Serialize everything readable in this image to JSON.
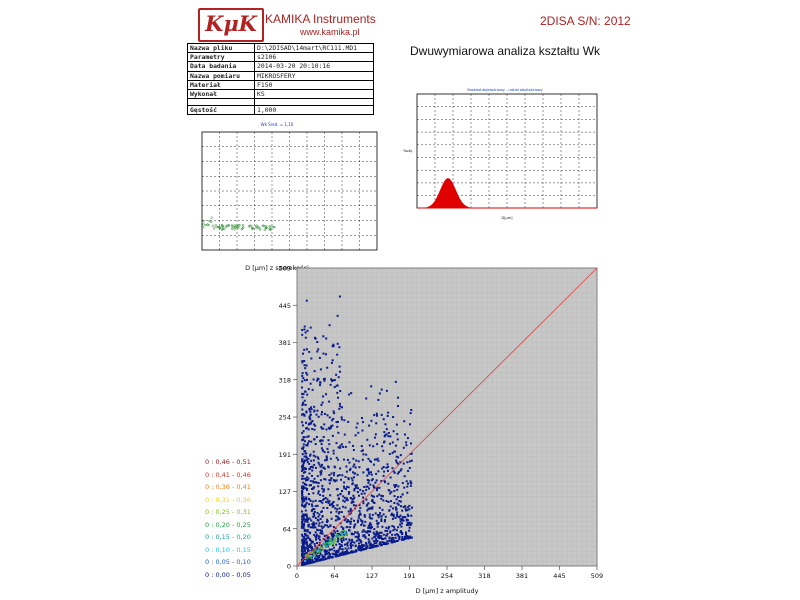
{
  "header": {
    "logo_text": "KμK",
    "company": "KAMIKA Instruments",
    "website": "www.kamika.pl",
    "serial": "2DISA S/N: 2012"
  },
  "meta_table": [
    {
      "key": "Nazwa pliku",
      "value": "D:\\2DISAD\\14mart\\RC111.MD1"
    },
    {
      "key": "Parametry",
      "value": "s2106"
    },
    {
      "key": "Data badania",
      "value": "2014-03-20 20:10:16"
    },
    {
      "key": "Nazwa pomiaru",
      "value": "MIKROSFERY"
    },
    {
      "key": "Materiał",
      "value": "F150"
    },
    {
      "key": "Wykonał",
      "value": "KS"
    },
    {
      "key": "",
      "value": ""
    },
    {
      "key": "Gęstość",
      "value": "1,000"
    }
  ],
  "analysis_title": "Dwuwymiarowa analiza kształtu Wk",
  "small_left_chart": {
    "title": "Wk Śred. = 1,10",
    "xlabel": "D [μm] z szerokości",
    "colors": {
      "points": "#2e8b2e",
      "line": "#2e8b2e"
    }
  },
  "small_right_chart": {
    "title": "Rozkład objętościowy - udział objętościowy",
    "ylabel": "%obj.",
    "xlabel": "D[μm]",
    "colors": {
      "fill": "#e00000",
      "line": "#e00000"
    }
  },
  "main_chart": {
    "xlabel": "D [μm] z amplitudy",
    "ylabel": "D [μm] z szerokości",
    "x_ticks": [
      "0",
      "64",
      "127",
      "191",
      "254",
      "318",
      "381",
      "445",
      "509"
    ],
    "y_ticks": [
      "0",
      "64",
      "127",
      "191",
      "254",
      "318",
      "381",
      "445",
      "509"
    ],
    "colors": {
      "background": "#c8c8c8",
      "grid": "#b4b4b4",
      "points": "#0a1c8c",
      "diagonal": "#e04040"
    }
  },
  "legend": [
    {
      "label": "0 : 0,46 - 0,51",
      "color": "#8b1a1a"
    },
    {
      "label": "0 : 0,41 - 0,46",
      "color": "#d43020"
    },
    {
      "label": "0 : 0,36 - 0,41",
      "color": "#f08020"
    },
    {
      "label": "0 : 0,31 - 0,36",
      "color": "#f0d020"
    },
    {
      "label": "0 : 0,25 - 0,31",
      "color": "#80c020"
    },
    {
      "label": "0 : 0,20 - 0,25",
      "color": "#20a040"
    },
    {
      "label": "0 : 0,15 - 0,20",
      "color": "#20a0a0"
    },
    {
      "label": "0 : 0,10 - 0,15",
      "color": "#20c0f0"
    },
    {
      "label": "0 : 0,05 - 0,10",
      "color": "#2060d0"
    },
    {
      "label": "0 : 0,00 - 0,05",
      "color": "#0a1c8c"
    }
  ]
}
